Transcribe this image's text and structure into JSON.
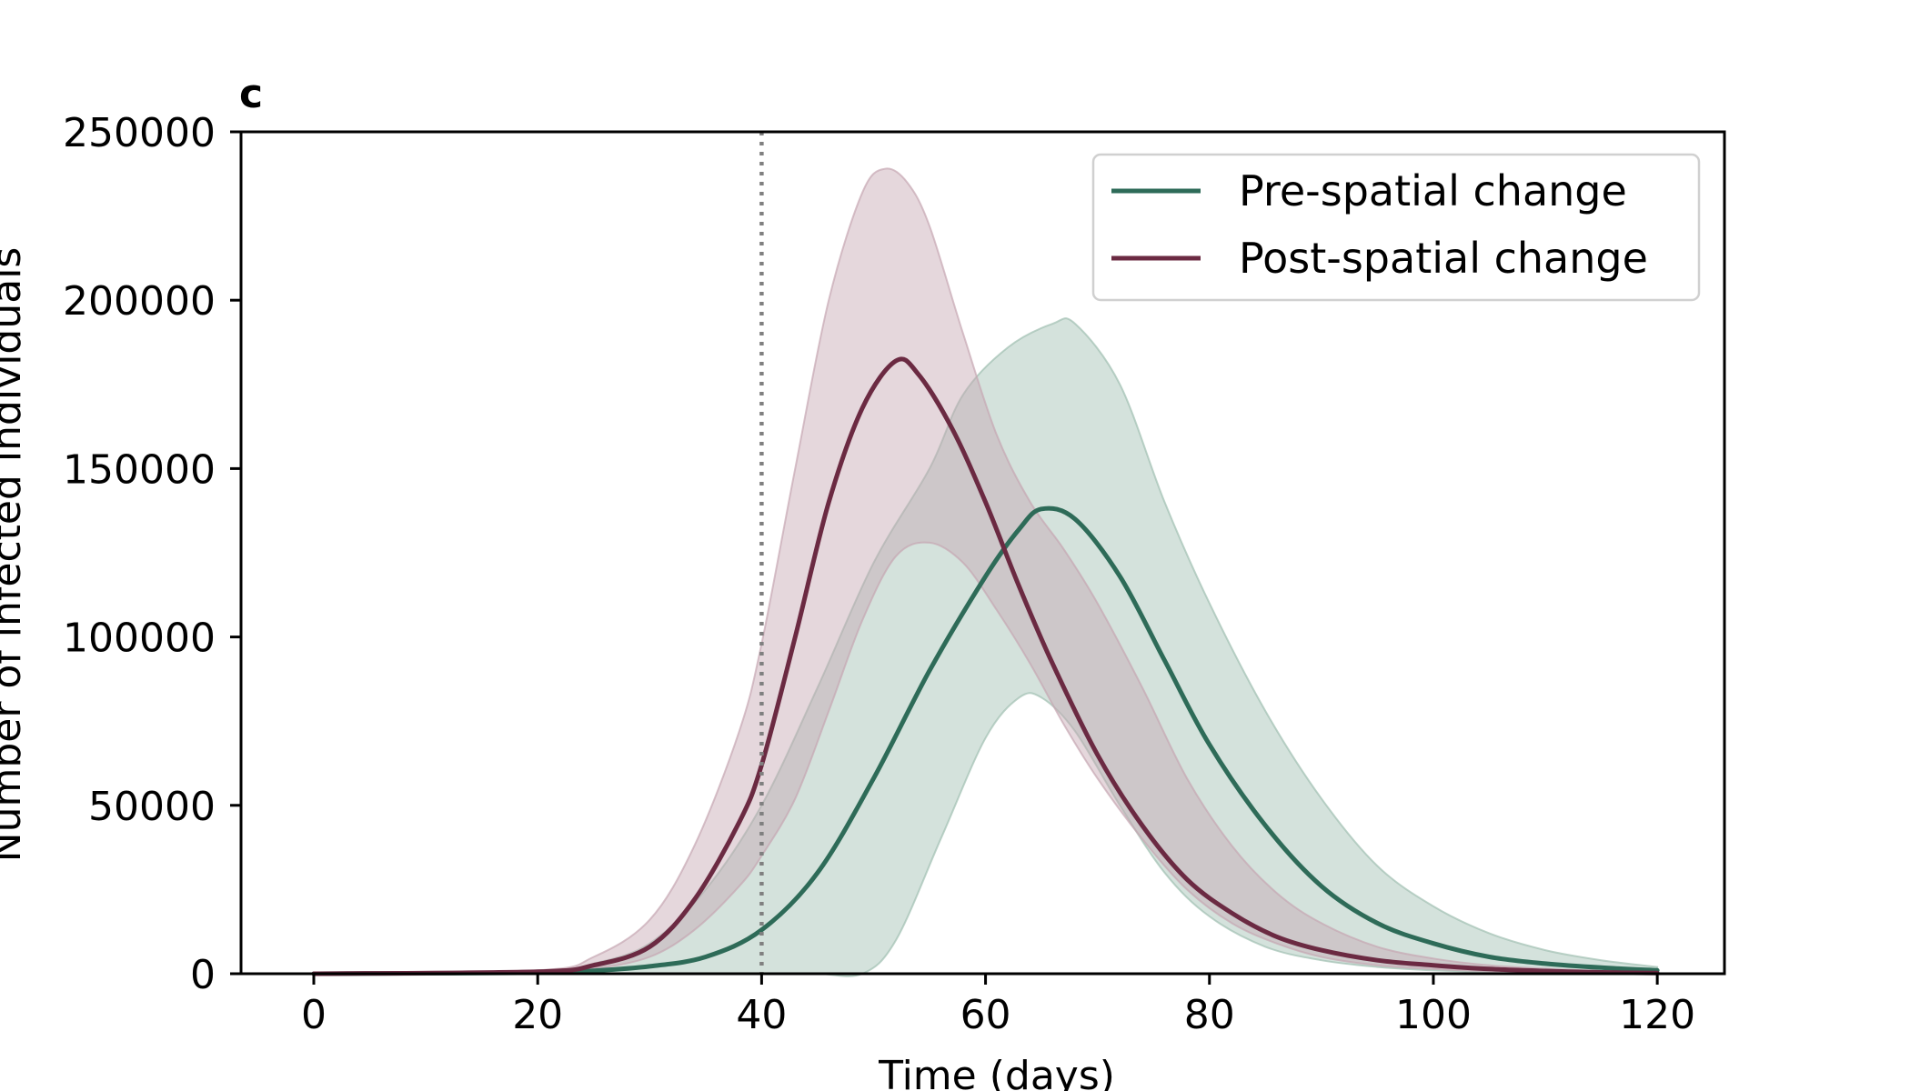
{
  "chart_data": {
    "type": "line",
    "panel_label": "c",
    "xlabel": "Time (days)",
    "ylabel": "Number of infected individuals",
    "xlim": [
      -6.5,
      126
    ],
    "ylim": [
      0,
      250000
    ],
    "xticks": [
      0,
      20,
      40,
      60,
      80,
      100,
      120
    ],
    "yticks": [
      0,
      50000,
      100000,
      150000,
      200000,
      250000
    ],
    "vline": {
      "x": 40,
      "style": "dotted",
      "color": "#808080"
    },
    "legend_position": "top-right",
    "series": [
      {
        "name": "Pre-spatial change",
        "color": "#2e6b58",
        "band_color": "#9fbfb1",
        "points": [
          [
            0,
            0
          ],
          [
            20,
            300
          ],
          [
            25,
            900
          ],
          [
            30,
            2200
          ],
          [
            35,
            5000
          ],
          [
            40,
            13000
          ],
          [
            45,
            30000
          ],
          [
            50,
            58000
          ],
          [
            55,
            90000
          ],
          [
            60,
            118000
          ],
          [
            63,
            132000
          ],
          [
            65,
            138000
          ],
          [
            68,
            135000
          ],
          [
            72,
            118000
          ],
          [
            76,
            93000
          ],
          [
            80,
            68000
          ],
          [
            85,
            44000
          ],
          [
            90,
            26000
          ],
          [
            95,
            15000
          ],
          [
            100,
            9000
          ],
          [
            105,
            5000
          ],
          [
            110,
            3000
          ],
          [
            115,
            1800
          ],
          [
            120,
            1000
          ]
        ],
        "upper": [
          [
            0,
            0
          ],
          [
            20,
            500
          ],
          [
            25,
            3000
          ],
          [
            30,
            9000
          ],
          [
            35,
            25000
          ],
          [
            40,
            50000
          ],
          [
            45,
            85000
          ],
          [
            50,
            122000
          ],
          [
            55,
            150000
          ],
          [
            58,
            172000
          ],
          [
            62,
            186000
          ],
          [
            66,
            193000
          ],
          [
            68,
            193000
          ],
          [
            72,
            175000
          ],
          [
            76,
            140000
          ],
          [
            80,
            110000
          ],
          [
            85,
            78000
          ],
          [
            90,
            52000
          ],
          [
            95,
            32000
          ],
          [
            100,
            20000
          ],
          [
            105,
            12000
          ],
          [
            110,
            7000
          ],
          [
            115,
            4000
          ],
          [
            120,
            2000
          ]
        ],
        "lower": [
          [
            0,
            0
          ],
          [
            40,
            0
          ],
          [
            45,
            0
          ],
          [
            49,
            0
          ],
          [
            52,
            10000
          ],
          [
            56,
            40000
          ],
          [
            60,
            70000
          ],
          [
            63,
            82000
          ],
          [
            65,
            82000
          ],
          [
            68,
            72000
          ],
          [
            72,
            50000
          ],
          [
            76,
            30000
          ],
          [
            80,
            17000
          ],
          [
            85,
            8000
          ],
          [
            90,
            4000
          ],
          [
            95,
            2000
          ],
          [
            100,
            1000
          ],
          [
            105,
            500
          ],
          [
            110,
            300
          ],
          [
            120,
            100
          ]
        ]
      },
      {
        "name": "Post-spatial change",
        "color": "#6b2a42",
        "band_color": "#c6a6b2",
        "points": [
          [
            0,
            0
          ],
          [
            20,
            600
          ],
          [
            25,
            2500
          ],
          [
            30,
            8000
          ],
          [
            34,
            22000
          ],
          [
            38,
            45000
          ],
          [
            40,
            62000
          ],
          [
            43,
            100000
          ],
          [
            46,
            140000
          ],
          [
            49,
            168000
          ],
          [
            52,
            182000
          ],
          [
            54,
            178000
          ],
          [
            57,
            162000
          ],
          [
            60,
            140000
          ],
          [
            63,
            115000
          ],
          [
            66,
            92000
          ],
          [
            70,
            65000
          ],
          [
            74,
            44000
          ],
          [
            78,
            28000
          ],
          [
            82,
            18000
          ],
          [
            86,
            11000
          ],
          [
            90,
            7000
          ],
          [
            95,
            4000
          ],
          [
            100,
            2500
          ],
          [
            105,
            1400
          ],
          [
            110,
            800
          ],
          [
            115,
            400
          ],
          [
            120,
            200
          ]
        ],
        "upper": [
          [
            0,
            0
          ],
          [
            20,
            1000
          ],
          [
            25,
            5000
          ],
          [
            30,
            16000
          ],
          [
            34,
            38000
          ],
          [
            38,
            72000
          ],
          [
            40,
            98000
          ],
          [
            43,
            150000
          ],
          [
            46,
            200000
          ],
          [
            49,
            232000
          ],
          [
            51,
            239000
          ],
          [
            53,
            235000
          ],
          [
            55,
            222000
          ],
          [
            58,
            190000
          ],
          [
            61,
            160000
          ],
          [
            64,
            140000
          ],
          [
            67,
            126000
          ],
          [
            70,
            110000
          ],
          [
            74,
            85000
          ],
          [
            78,
            58000
          ],
          [
            82,
            38000
          ],
          [
            86,
            24000
          ],
          [
            90,
            15000
          ],
          [
            95,
            8000
          ],
          [
            100,
            4500
          ],
          [
            105,
            2500
          ],
          [
            110,
            1500
          ],
          [
            115,
            800
          ],
          [
            120,
            400
          ]
        ],
        "lower": [
          [
            0,
            0
          ],
          [
            20,
            300
          ],
          [
            25,
            1500
          ],
          [
            30,
            5000
          ],
          [
            34,
            13000
          ],
          [
            38,
            26000
          ],
          [
            40,
            35000
          ],
          [
            43,
            52000
          ],
          [
            46,
            78000
          ],
          [
            49,
            105000
          ],
          [
            52,
            124000
          ],
          [
            55,
            128000
          ],
          [
            58,
            122000
          ],
          [
            61,
            108000
          ],
          [
            64,
            92000
          ],
          [
            67,
            74000
          ],
          [
            70,
            58000
          ],
          [
            74,
            40000
          ],
          [
            78,
            25000
          ],
          [
            82,
            15000
          ],
          [
            86,
            9000
          ],
          [
            90,
            5000
          ],
          [
            95,
            2500
          ],
          [
            100,
            1400
          ],
          [
            105,
            700
          ],
          [
            110,
            400
          ],
          [
            120,
            150
          ]
        ]
      }
    ]
  }
}
